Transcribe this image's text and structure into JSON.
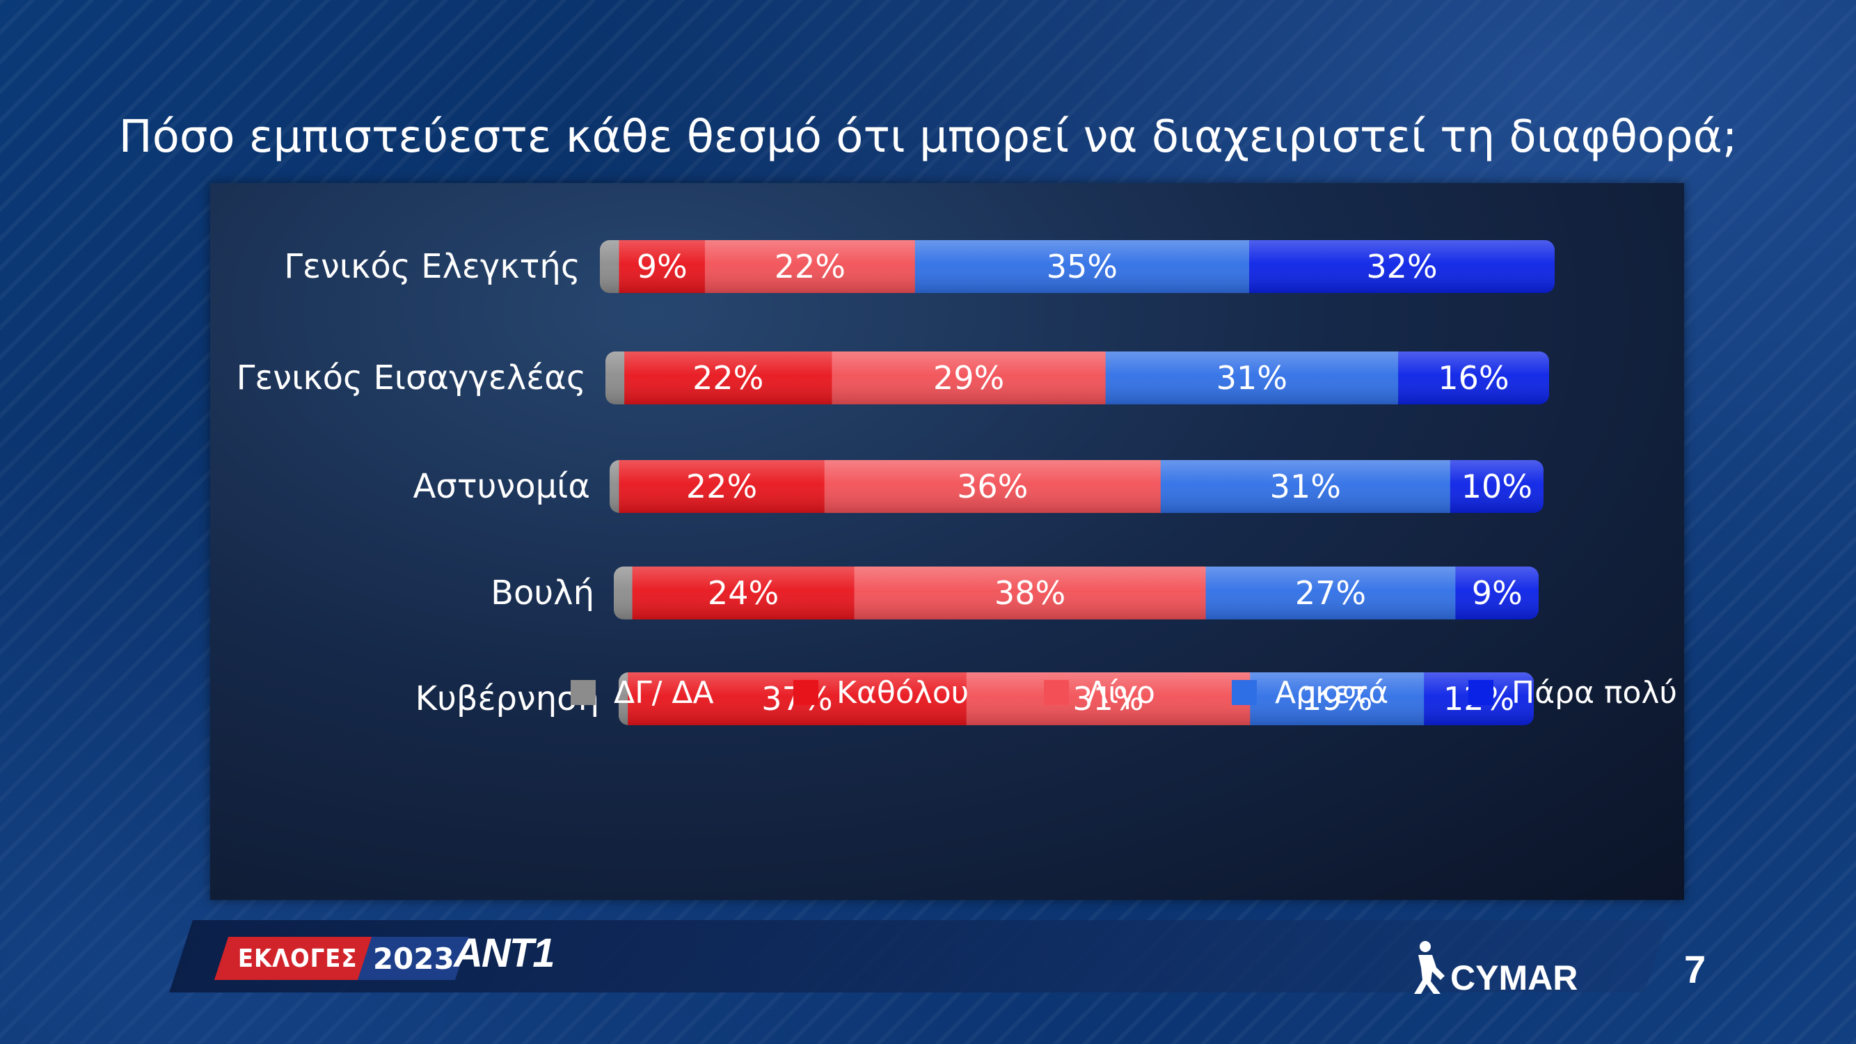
{
  "title": "Πόσο εμπιστεύεστε κάθε θεσμό ότι μπορεί να διαχειριστεί τη διαφθορά;",
  "colors": {
    "dg_da": "#8c8c8c",
    "katholou": "#e8141b",
    "ligo": "#f25056",
    "arketa": "#2f6fe6",
    "para_poly": "#0a21e6"
  },
  "legend": [
    {
      "label": "ΔΓ/ ΔΑ",
      "color": "#8c8c8c"
    },
    {
      "label": "Καθόλου",
      "color": "#e8141b"
    },
    {
      "label": "Λίγο",
      "color": "#f25056"
    },
    {
      "label": "Αρκετά",
      "color": "#2f6fe6"
    },
    {
      "label": "Πάρα πολύ",
      "color": "#0a21e6"
    }
  ],
  "chart_data": {
    "type": "bar",
    "orientation": "horizontal",
    "stacked": true,
    "title": "Πόσο εμπιστεύεστε κάθε θεσμό ότι μπορεί να διαχειριστεί τη διαφθορά;",
    "categories": [
      "Γενικός Ελεγκτής",
      "Γενικός Εισαγγελέας",
      "Αστυνομία",
      "Βουλή",
      "Κυβέρνηση"
    ],
    "series": [
      {
        "name": "ΔΓ/ ΔΑ",
        "values": [
          2,
          2,
          1,
          2,
          1
        ]
      },
      {
        "name": "Καθόλου",
        "values": [
          9,
          22,
          22,
          24,
          37
        ]
      },
      {
        "name": "Λίγο",
        "values": [
          22,
          29,
          36,
          38,
          31
        ]
      },
      {
        "name": "Αρκετά",
        "values": [
          35,
          31,
          31,
          27,
          19
        ]
      },
      {
        "name": "Πάρα πολύ",
        "values": [
          32,
          16,
          10,
          9,
          12
        ]
      }
    ],
    "labels": [
      [
        "",
        "9%",
        "22%",
        "35%",
        "32%"
      ],
      [
        "",
        "22%",
        "29%",
        "31%",
        "16%"
      ],
      [
        "",
        "22%",
        "36%",
        "31%",
        "10%"
      ],
      [
        "",
        "24%",
        "38%",
        "27%",
        "9%"
      ],
      [
        "",
        "37%",
        "31%",
        "19%",
        "12%"
      ]
    ],
    "xlim": [
      0,
      100
    ],
    "legend_position": "bottom",
    "grid": false
  },
  "footer": {
    "elections_label": "ΕΚΛΟΓΕΣ",
    "year": "2023",
    "channel": "ANT1",
    "pollster": "CYMAR",
    "page_number": "7"
  }
}
